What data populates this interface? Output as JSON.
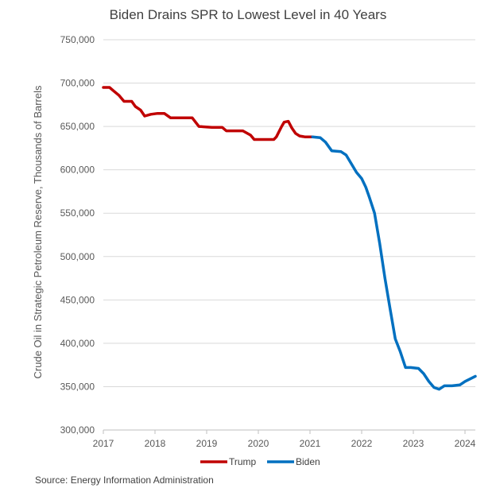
{
  "chart_data": {
    "type": "line",
    "title": "Biden Drains SPR to Lowest Level in 40 Years",
    "xlabel": "",
    "ylabel": "Crude Oil in Strategic Petroleum Reserve, Thousands of Barrels",
    "xlim": [
      2017,
      2024.2
    ],
    "ylim": [
      300000,
      750000
    ],
    "x_ticks": [
      "2017",
      "2018",
      "2019",
      "2020",
      "2021",
      "2022",
      "2023",
      "2024"
    ],
    "y_ticks": [
      "300,000",
      "350,000",
      "400,000",
      "450,000",
      "500,000",
      "550,000",
      "600,000",
      "650,000",
      "700,000",
      "750,000"
    ],
    "y_tick_values": [
      300000,
      350000,
      400000,
      450000,
      500000,
      550000,
      600000,
      650000,
      700000,
      750000
    ],
    "grid": "horizontal",
    "legend": "bottom",
    "series": [
      {
        "name": "Trump",
        "color": "#C00000",
        "points": [
          [
            2017.0,
            695000
          ],
          [
            2017.12,
            695000
          ],
          [
            2017.2,
            691000
          ],
          [
            2017.3,
            686000
          ],
          [
            2017.4,
            679000
          ],
          [
            2017.55,
            679000
          ],
          [
            2017.62,
            673000
          ],
          [
            2017.72,
            669000
          ],
          [
            2017.8,
            662000
          ],
          [
            2017.92,
            664000
          ],
          [
            2018.05,
            665000
          ],
          [
            2018.18,
            665000
          ],
          [
            2018.3,
            660000
          ],
          [
            2018.5,
            660000
          ],
          [
            2018.72,
            660000
          ],
          [
            2018.85,
            650000
          ],
          [
            2019.1,
            649000
          ],
          [
            2019.3,
            649000
          ],
          [
            2019.38,
            645000
          ],
          [
            2019.7,
            645000
          ],
          [
            2019.85,
            640000
          ],
          [
            2019.92,
            635000
          ],
          [
            2020.1,
            635000
          ],
          [
            2020.3,
            635000
          ],
          [
            2020.35,
            638000
          ],
          [
            2020.45,
            650000
          ],
          [
            2020.5,
            655000
          ],
          [
            2020.58,
            656000
          ],
          [
            2020.65,
            648000
          ],
          [
            2020.72,
            642000
          ],
          [
            2020.8,
            639000
          ],
          [
            2020.9,
            638000
          ],
          [
            2021.05,
            638000
          ]
        ]
      },
      {
        "name": "Biden",
        "color": "#0070C0",
        "points": [
          [
            2021.05,
            638000
          ],
          [
            2021.2,
            637000
          ],
          [
            2021.3,
            632000
          ],
          [
            2021.42,
            622000
          ],
          [
            2021.6,
            621000
          ],
          [
            2021.7,
            617000
          ],
          [
            2021.8,
            607000
          ],
          [
            2021.9,
            597000
          ],
          [
            2022.0,
            590000
          ],
          [
            2022.08,
            580000
          ],
          [
            2022.15,
            568000
          ],
          [
            2022.25,
            550000
          ],
          [
            2022.35,
            515000
          ],
          [
            2022.45,
            475000
          ],
          [
            2022.55,
            440000
          ],
          [
            2022.65,
            405000
          ],
          [
            2022.75,
            390000
          ],
          [
            2022.85,
            372000
          ],
          [
            2022.95,
            372000
          ],
          [
            2023.1,
            371000
          ],
          [
            2023.2,
            365000
          ],
          [
            2023.3,
            356000
          ],
          [
            2023.4,
            349000
          ],
          [
            2023.5,
            347000
          ],
          [
            2023.6,
            351000
          ],
          [
            2023.75,
            351000
          ],
          [
            2023.9,
            352000
          ],
          [
            2024.0,
            356000
          ],
          [
            2024.2,
            362000
          ]
        ]
      }
    ]
  },
  "source": "Source: Energy Information Administration"
}
